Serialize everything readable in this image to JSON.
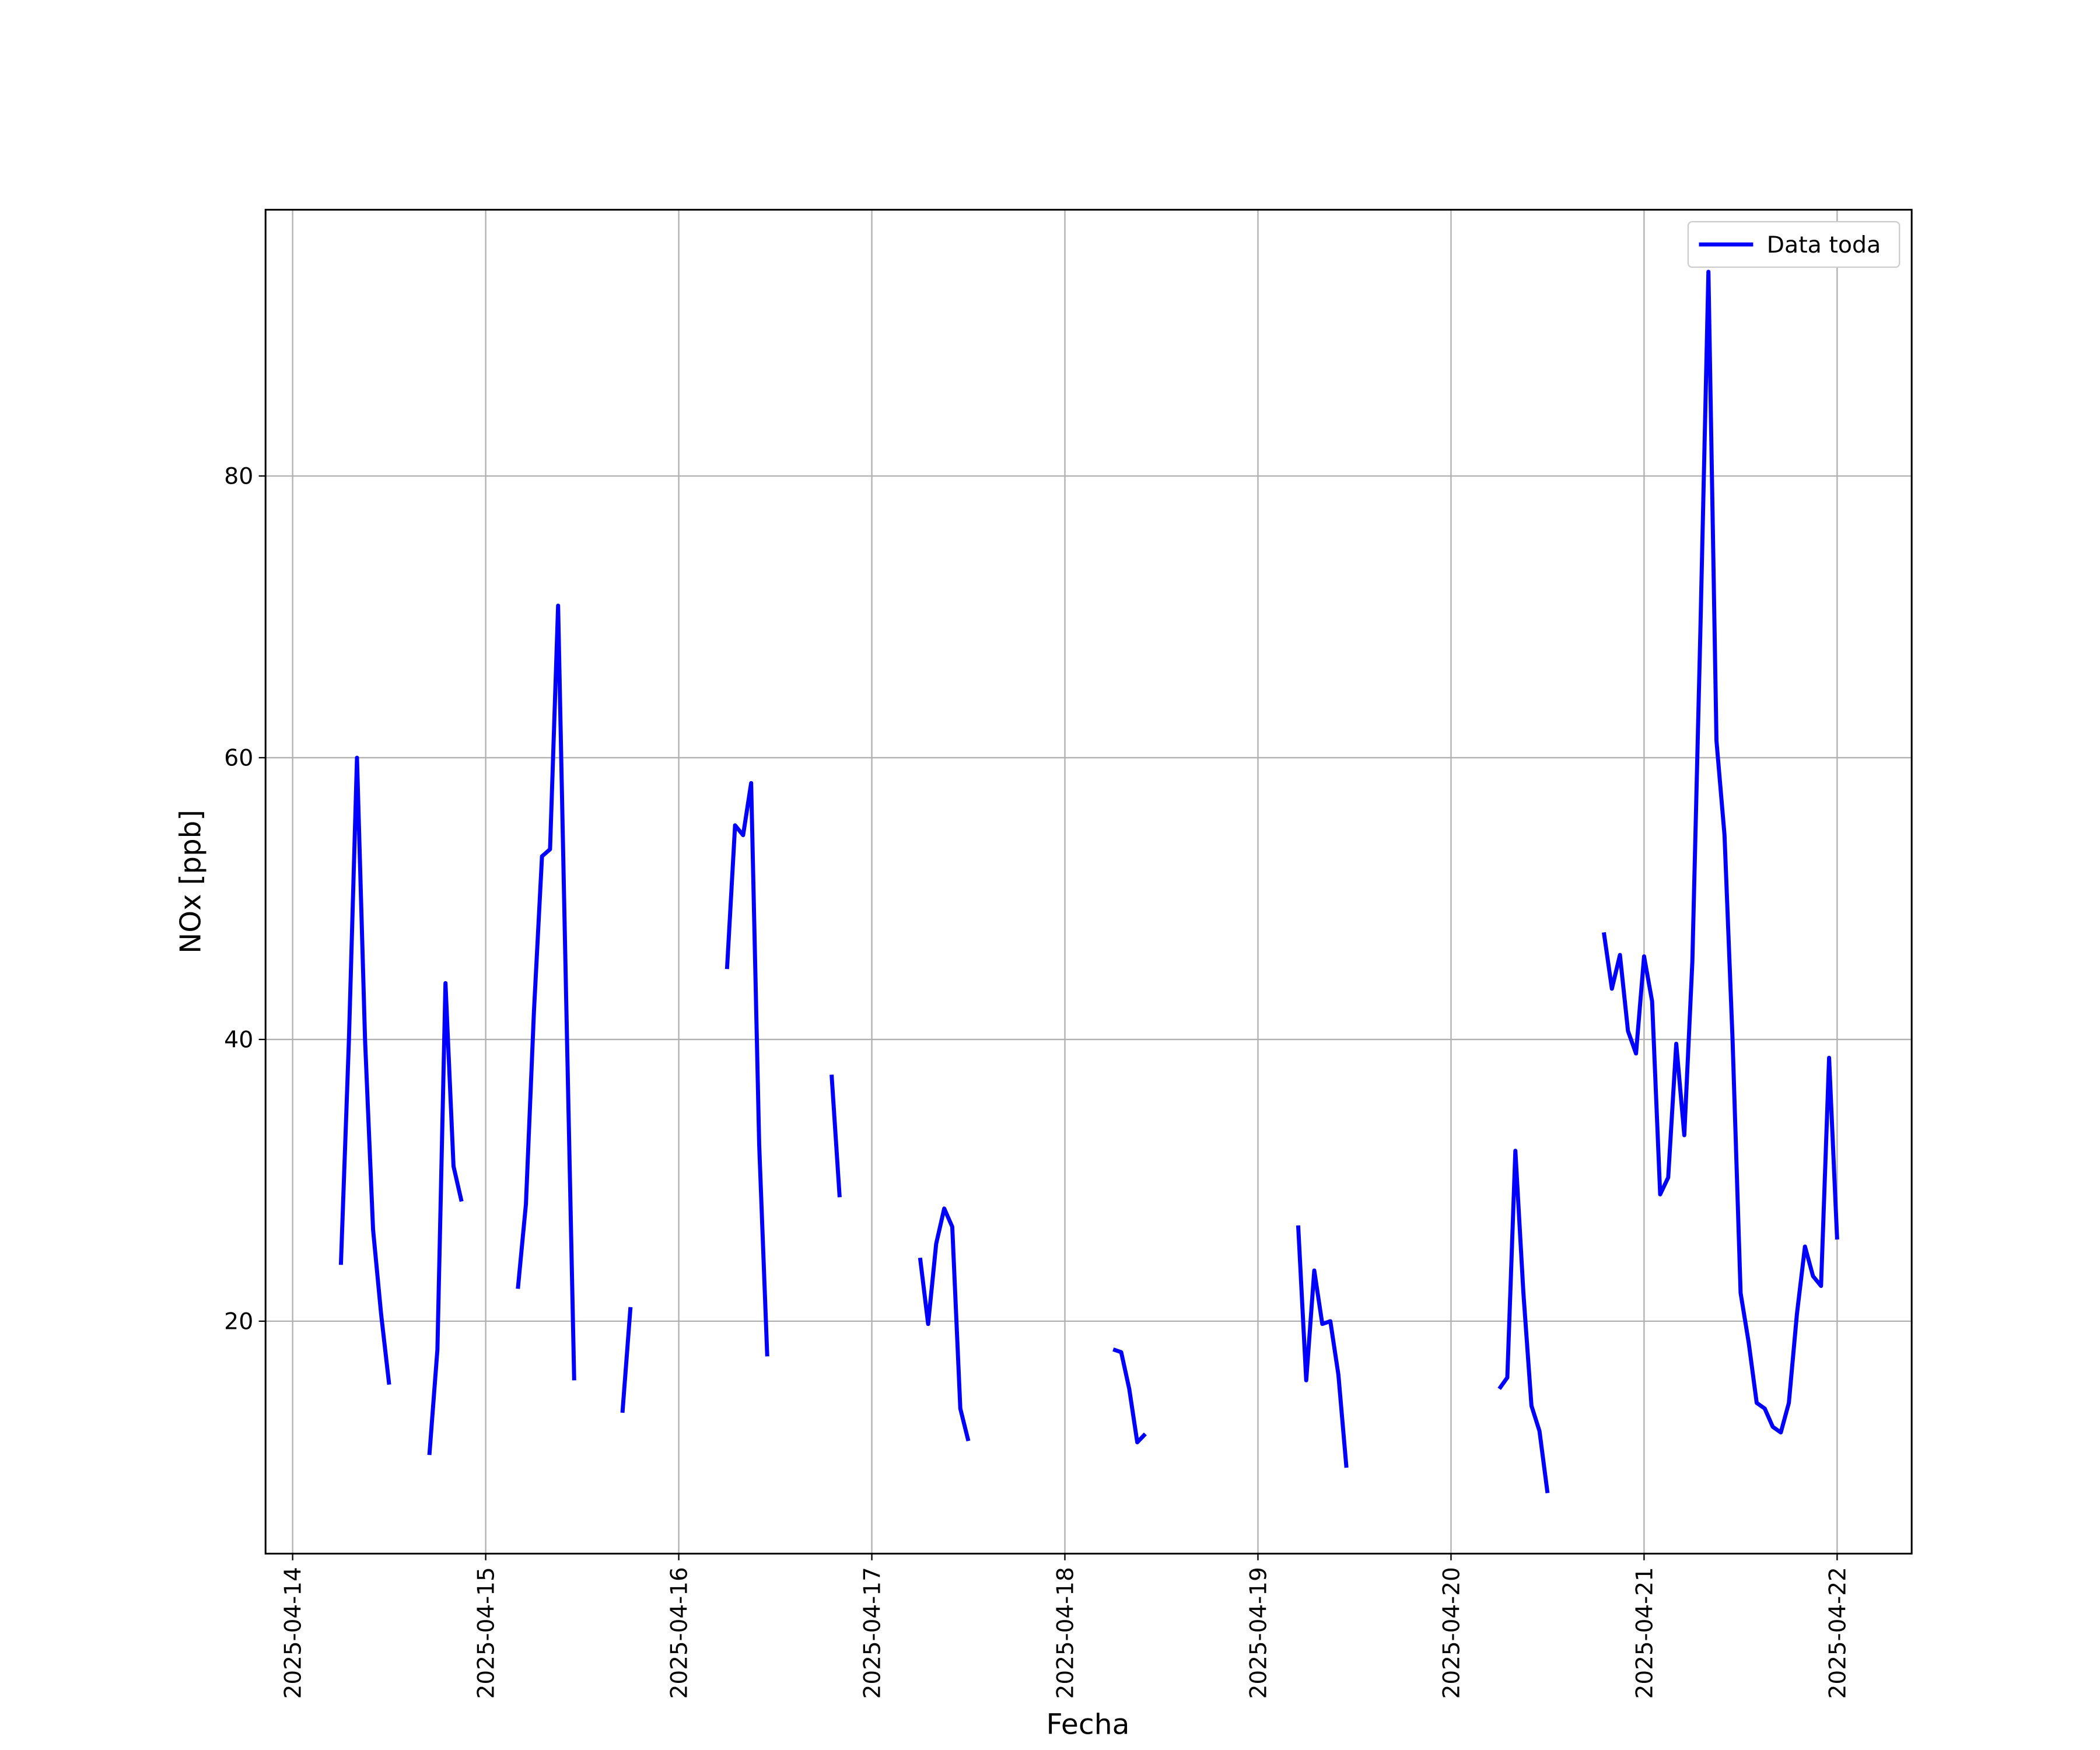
{
  "chart_data": {
    "type": "line",
    "xlabel": "Fecha",
    "ylabel": "NOx [ppb]",
    "x": [
      "2025-04-14T06:00",
      "2025-04-14T07:00",
      "2025-04-14T08:00",
      "2025-04-14T09:00",
      "2025-04-14T10:00",
      "2025-04-14T11:00",
      "2025-04-14T12:00",
      "2025-04-14T14:00",
      "2025-04-14T17:00",
      "2025-04-14T18:00",
      "2025-04-14T19:00",
      "2025-04-14T20:00",
      "2025-04-14T21:00",
      "2025-04-14T22:00",
      "2025-04-15T04:00",
      "2025-04-15T05:00",
      "2025-04-15T06:00",
      "2025-04-15T07:00",
      "2025-04-15T08:00",
      "2025-04-15T09:00",
      "2025-04-15T10:00",
      "2025-04-15T11:00",
      "2025-04-15T14:00",
      "2025-04-15T17:00",
      "2025-04-15T18:00",
      "2025-04-15T21:00",
      "2025-04-16T06:00",
      "2025-04-16T07:00",
      "2025-04-16T08:00",
      "2025-04-16T09:00",
      "2025-04-16T10:00",
      "2025-04-16T11:00",
      "2025-04-16T15:00",
      "2025-04-16T19:00",
      "2025-04-16T20:00",
      "2025-04-16T23:00",
      "2025-04-17T06:00",
      "2025-04-17T07:00",
      "2025-04-17T08:00",
      "2025-04-17T09:00",
      "2025-04-17T10:00",
      "2025-04-17T11:00",
      "2025-04-17T12:00",
      "2025-04-17T18:00",
      "2025-04-18T06:00",
      "2025-04-18T07:00",
      "2025-04-18T08:00",
      "2025-04-18T09:00",
      "2025-04-18T10:00",
      "2025-04-18T18:00",
      "2025-04-19T05:00",
      "2025-04-19T06:00",
      "2025-04-19T07:00",
      "2025-04-19T08:00",
      "2025-04-19T09:00",
      "2025-04-19T10:00",
      "2025-04-19T11:00",
      "2025-04-19T18:00",
      "2025-04-20T06:00",
      "2025-04-20T07:00",
      "2025-04-20T08:00",
      "2025-04-20T09:00",
      "2025-04-20T10:00",
      "2025-04-20T11:00",
      "2025-04-20T12:00",
      "2025-04-20T16:00",
      "2025-04-20T19:00",
      "2025-04-20T20:00",
      "2025-04-20T21:00",
      "2025-04-20T22:00",
      "2025-04-20T23:00",
      "2025-04-21T00:00",
      "2025-04-21T01:00",
      "2025-04-21T02:00",
      "2025-04-21T03:00",
      "2025-04-21T04:00",
      "2025-04-21T05:00",
      "2025-04-21T06:00",
      "2025-04-21T07:00",
      "2025-04-21T08:00",
      "2025-04-21T09:00",
      "2025-04-21T10:00",
      "2025-04-21T11:00",
      "2025-04-21T12:00",
      "2025-04-21T13:00",
      "2025-04-21T14:00",
      "2025-04-21T15:00",
      "2025-04-21T16:00",
      "2025-04-21T17:00",
      "2025-04-21T18:00",
      "2025-04-21T19:00",
      "2025-04-21T20:00",
      "2025-04-21T21:00",
      "2025-04-21T22:00",
      "2025-04-21T23:00",
      "2025-04-22T00:00"
    ],
    "series": [
      {
        "name": "Data toda",
        "color": "#0000ff",
        "values": [
          24,
          40,
          60,
          40,
          26.5,
          20.5,
          15.5,
          null,
          10.5,
          18,
          44,
          31,
          28.5,
          null,
          22.3,
          28.3,
          42,
          53,
          53.5,
          70.8,
          43,
          15.8,
          null,
          13.5,
          21,
          null,
          45,
          55.2,
          54.5,
          58.2,
          32.5,
          17.5,
          null,
          37.5,
          28.8,
          null,
          24.5,
          19.8,
          25.5,
          28,
          26.7,
          13.8,
          11.5,
          null,
          18,
          17.8,
          15.2,
          11.4,
          12,
          null,
          26.8,
          15.8,
          23.6,
          19.8,
          20,
          16.2,
          9.6,
          null,
          15.2,
          16,
          32.1,
          22,
          14,
          12.2,
          7.8,
          null,
          47.6,
          43.6,
          46,
          40.6,
          39,
          45.9,
          42.7,
          29,
          30.2,
          39.7,
          33.2,
          45.5,
          69,
          94.5,
          61.2,
          54.5,
          40,
          22,
          18.5,
          14.2,
          13.8,
          12.5,
          12.1,
          14.2,
          20.5,
          25.3,
          23.2,
          22.5,
          38.7,
          25.8
        ]
      }
    ],
    "xlim": [
      "2025-04-13T20:38",
      "2025-04-22T09:16"
    ],
    "xticks": [
      "2025-04-14",
      "2025-04-15",
      "2025-04-16",
      "2025-04-17",
      "2025-04-18",
      "2025-04-19",
      "2025-04-20",
      "2025-04-21",
      "2025-04-22"
    ],
    "ylim": [
      3.5,
      98.9
    ],
    "yticks": [
      20,
      40,
      60,
      80
    ],
    "grid": true,
    "legend": "upper right"
  }
}
